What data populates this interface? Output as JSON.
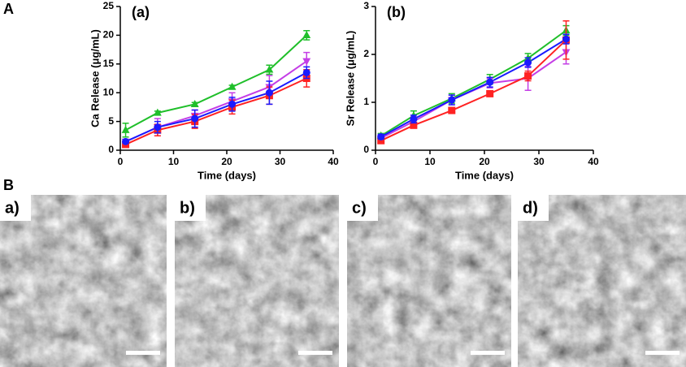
{
  "panel_labels": [
    "A",
    "B"
  ],
  "chart_data": [
    {
      "type": "line",
      "panel": "(a)",
      "xlabel": "Time (days)",
      "ylabel": "Ca Release (μg/mL)",
      "x": [
        1,
        7,
        14,
        21,
        28,
        35
      ],
      "xlim": [
        0,
        40
      ],
      "xticks": [
        0,
        10,
        20,
        30,
        40
      ],
      "ylim": [
        0,
        25
      ],
      "yticks": [
        0,
        5,
        10,
        15,
        20,
        25
      ],
      "series": [
        {
          "color": "#1fbf2a",
          "marker": "triangle-up",
          "values": [
            3.5,
            6.5,
            8,
            11,
            14,
            20
          ],
          "errors": [
            1.2,
            0.3,
            0.3,
            0.3,
            0.8,
            0.8
          ]
        },
        {
          "color": "#c43ee6",
          "marker": "triangle-down",
          "values": [
            1.5,
            4,
            6,
            8.5,
            11,
            15.5
          ],
          "errors": [
            0.3,
            1.5,
            1,
            1.5,
            2,
            1.5
          ]
        },
        {
          "color": "#ff2222",
          "marker": "square",
          "values": [
            1,
            3.5,
            5,
            7.5,
            9.5,
            12.5
          ],
          "errors": [
            0.3,
            1,
            1.2,
            1.2,
            1.5,
            1.5
          ]
        },
        {
          "color": "#1a1aff",
          "marker": "circle",
          "values": [
            1.5,
            4,
            5.5,
            8,
            10,
            13.5
          ],
          "errors": [
            0.3,
            1,
            1.5,
            1.2,
            2,
            1
          ]
        }
      ]
    },
    {
      "type": "line",
      "panel": "(b)",
      "xlabel": "Time (days)",
      "ylabel": "Sr Release (μg/mL)",
      "x": [
        1,
        7,
        14,
        21,
        28,
        35
      ],
      "xlim": [
        0,
        40
      ],
      "xticks": [
        0,
        10,
        20,
        30,
        40
      ],
      "ylim": [
        0,
        3
      ],
      "yticks": [
        0,
        1,
        2,
        3
      ],
      "series": [
        {
          "color": "#1fbf2a",
          "marker": "triangle-up",
          "values": [
            0.3,
            0.72,
            1.08,
            1.48,
            1.92,
            2.5
          ],
          "errors": [
            0.05,
            0.1,
            0.1,
            0.1,
            0.1,
            0.1
          ]
        },
        {
          "color": "#c43ee6",
          "marker": "triangle-down",
          "values": [
            0.25,
            0.6,
            1.05,
            1.4,
            1.5,
            2.05
          ],
          "errors": [
            0.05,
            0.1,
            0.1,
            0.1,
            0.25,
            0.25
          ]
        },
        {
          "color": "#ff2222",
          "marker": "square",
          "values": [
            0.2,
            0.52,
            0.83,
            1.18,
            1.55,
            2.3
          ],
          "errors": [
            0.05,
            0.05,
            0.05,
            0.05,
            0.1,
            0.4
          ]
        },
        {
          "color": "#1a1aff",
          "marker": "circle",
          "values": [
            0.28,
            0.65,
            1.05,
            1.42,
            1.83,
            2.32
          ],
          "errors": [
            0.05,
            0.08,
            0.1,
            0.1,
            0.1,
            0.1
          ]
        }
      ]
    }
  ],
  "sem_images": {
    "labels": [
      "a)",
      "b)",
      "c)",
      "d)"
    ]
  }
}
